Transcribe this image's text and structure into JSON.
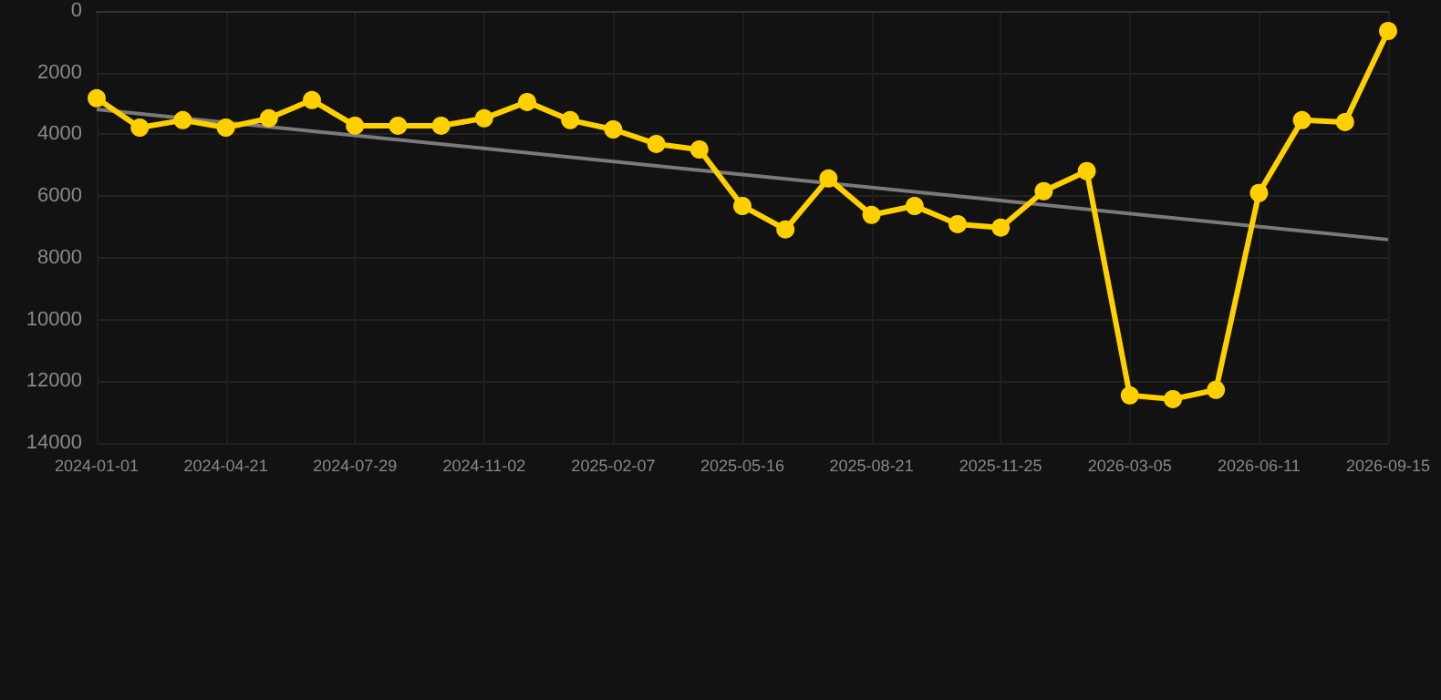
{
  "chart_data": {
    "type": "line",
    "categories": [
      "2024-01-01",
      null,
      null,
      "2024-04-21",
      null,
      null,
      "2024-07-29",
      null,
      null,
      "2024-11-02",
      null,
      null,
      "2025-02-07",
      null,
      null,
      "2025-05-16",
      null,
      null,
      "2025-08-21",
      null,
      null,
      "2025-11-25",
      null,
      null,
      "2026-03-05",
      null,
      null,
      "2026-06-11",
      null,
      null,
      "2026-09-15"
    ],
    "series": [
      {
        "color": "#ffd000",
        "values": [
          2830,
          3780,
          3540,
          3780,
          3480,
          2890,
          3720,
          3720,
          3720,
          3480,
          2950,
          3540,
          3840,
          4310,
          4490,
          6320,
          7080,
          5430,
          6610,
          6320,
          6910,
          7020,
          5840,
          5190,
          12460,
          12580,
          12280,
          5900,
          3540,
          3600,
          650
        ]
      },
      {
        "type": "line",
        "color": "#7a7a7a",
        "values": [
          3190,
          null,
          null,
          null,
          null,
          null,
          null,
          null,
          null,
          null,
          null,
          null,
          null,
          null,
          null,
          null,
          null,
          null,
          null,
          null,
          null,
          null,
          null,
          null,
          null,
          null,
          null,
          null,
          null,
          null,
          7410
        ],
        "marker": "none"
      }
    ],
    "ylim": [
      14000,
      0
    ],
    "yticks": [
      0,
      2000,
      4000,
      6000,
      8000,
      10000,
      12000,
      14000
    ],
    "grid": true,
    "marker": "circle"
  }
}
